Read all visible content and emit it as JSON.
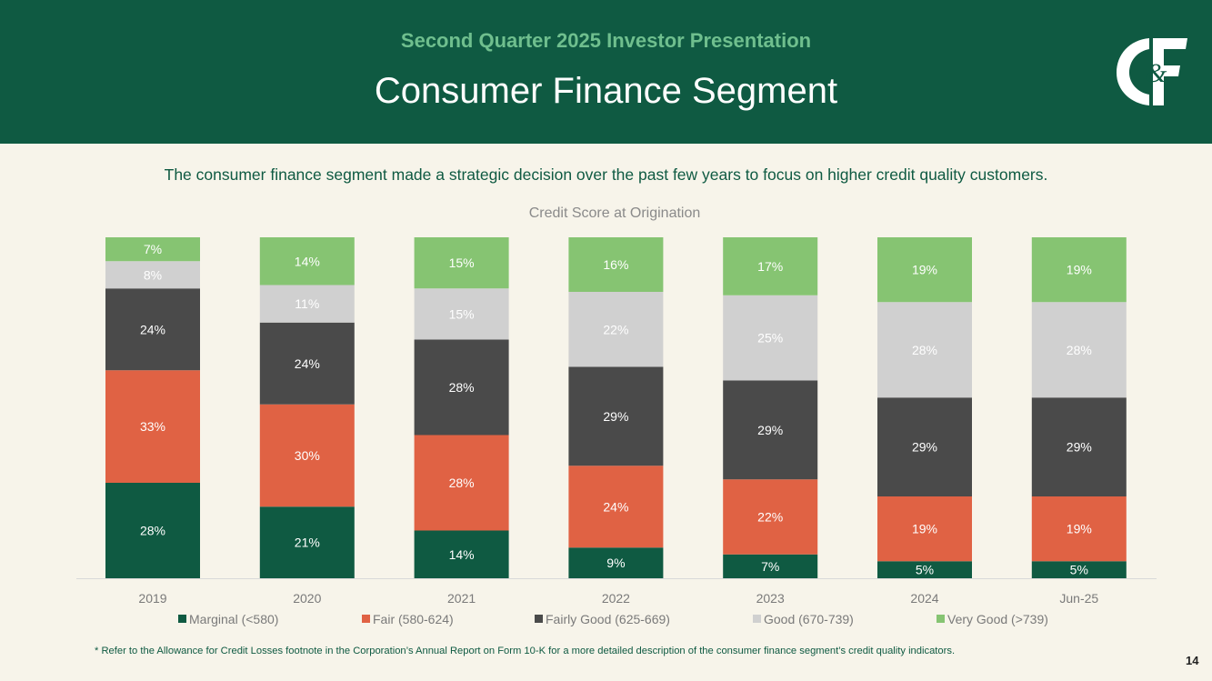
{
  "header": {
    "subtitle": "Second Quarter 2025 Investor Presentation",
    "title": "Consumer Finance Segment",
    "logo_text": "C&F"
  },
  "tagline": "The consumer finance segment made a strategic decision over the past few years to focus on higher credit quality customers.",
  "footnote": "* Refer to the Allowance for Credit Losses footnote in the Corporation’s Annual Report on Form 10-K for a more detailed description of the consumer finance segment’s credit quality indicators.",
  "page_number": "14",
  "colors": {
    "brand_green": "#0f5a42",
    "header_green": "#0f5a42",
    "subtitle_green": "#6fbf8e"
  },
  "chart_data": {
    "type": "bar",
    "stacked": true,
    "title": "Credit Score at Origination",
    "categories": [
      "2019",
      "2020",
      "2021",
      "2022",
      "2023",
      "2024",
      "Jun-25"
    ],
    "ylim": [
      0,
      100
    ],
    "legend_position": "bottom",
    "series": [
      {
        "name": "Marginal (<580)",
        "color": "#0f5a42",
        "labels": [
          "28%",
          "21%",
          "14%",
          "9%",
          "7%",
          "5%",
          "5%"
        ],
        "values": [
          28,
          21,
          14,
          9,
          7,
          5,
          5
        ]
      },
      {
        "name": "Fair (580-624)",
        "color": "#e06244",
        "labels": [
          "33%",
          "30%",
          "28%",
          "24%",
          "22%",
          "19%",
          "19%"
        ],
        "values": [
          33,
          30,
          28,
          24,
          22,
          19,
          19
        ]
      },
      {
        "name": "Fairly Good (625-669)",
        "color": "#4a4a4a",
        "labels": [
          "24%",
          "24%",
          "28%",
          "29%",
          "29%",
          "29%",
          "29%"
        ],
        "values": [
          24,
          24,
          28,
          29,
          29,
          29,
          29
        ]
      },
      {
        "name": "Good (670-739)",
        "color": "#d0d0d0",
        "labels": [
          "8%",
          "11%",
          "15%",
          "22%",
          "25%",
          "28%",
          "28%"
        ],
        "values": [
          8,
          11,
          15,
          22,
          25,
          28,
          28
        ]
      },
      {
        "name": "Very Good (>739)",
        "color": "#86c472",
        "labels": [
          "7%",
          "14%",
          "15%",
          "16%",
          "17%",
          "19%",
          "19%"
        ],
        "values": [
          7,
          14,
          15,
          16,
          17,
          19,
          19
        ]
      }
    ]
  }
}
